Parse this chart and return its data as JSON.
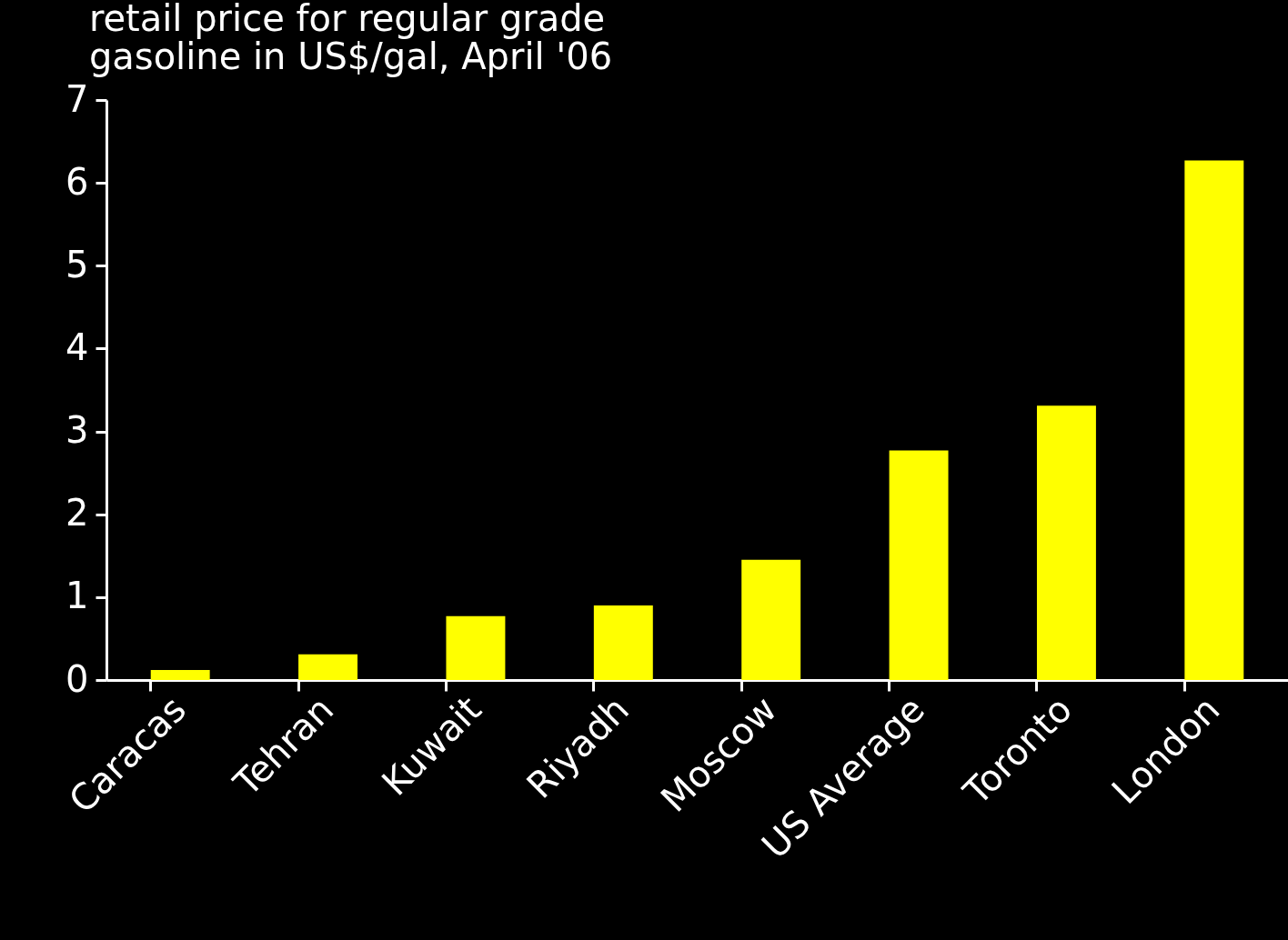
{
  "chart_data": {
    "type": "bar",
    "title": "retail price for regular grade gasoline in US$/gal, April '06",
    "categories": [
      "Caracas",
      "Tehran",
      "Kuwait",
      "Riyadh",
      "Moscow",
      "US Average",
      "Toronto",
      "London"
    ],
    "values": [
      0.12,
      0.31,
      0.77,
      0.9,
      1.45,
      2.77,
      3.31,
      6.27
    ],
    "color": "#ffff00",
    "ylim": [
      0,
      7
    ],
    "yticks": [
      0,
      1,
      2,
      3,
      4,
      5,
      6,
      7
    ],
    "grid": false
  }
}
